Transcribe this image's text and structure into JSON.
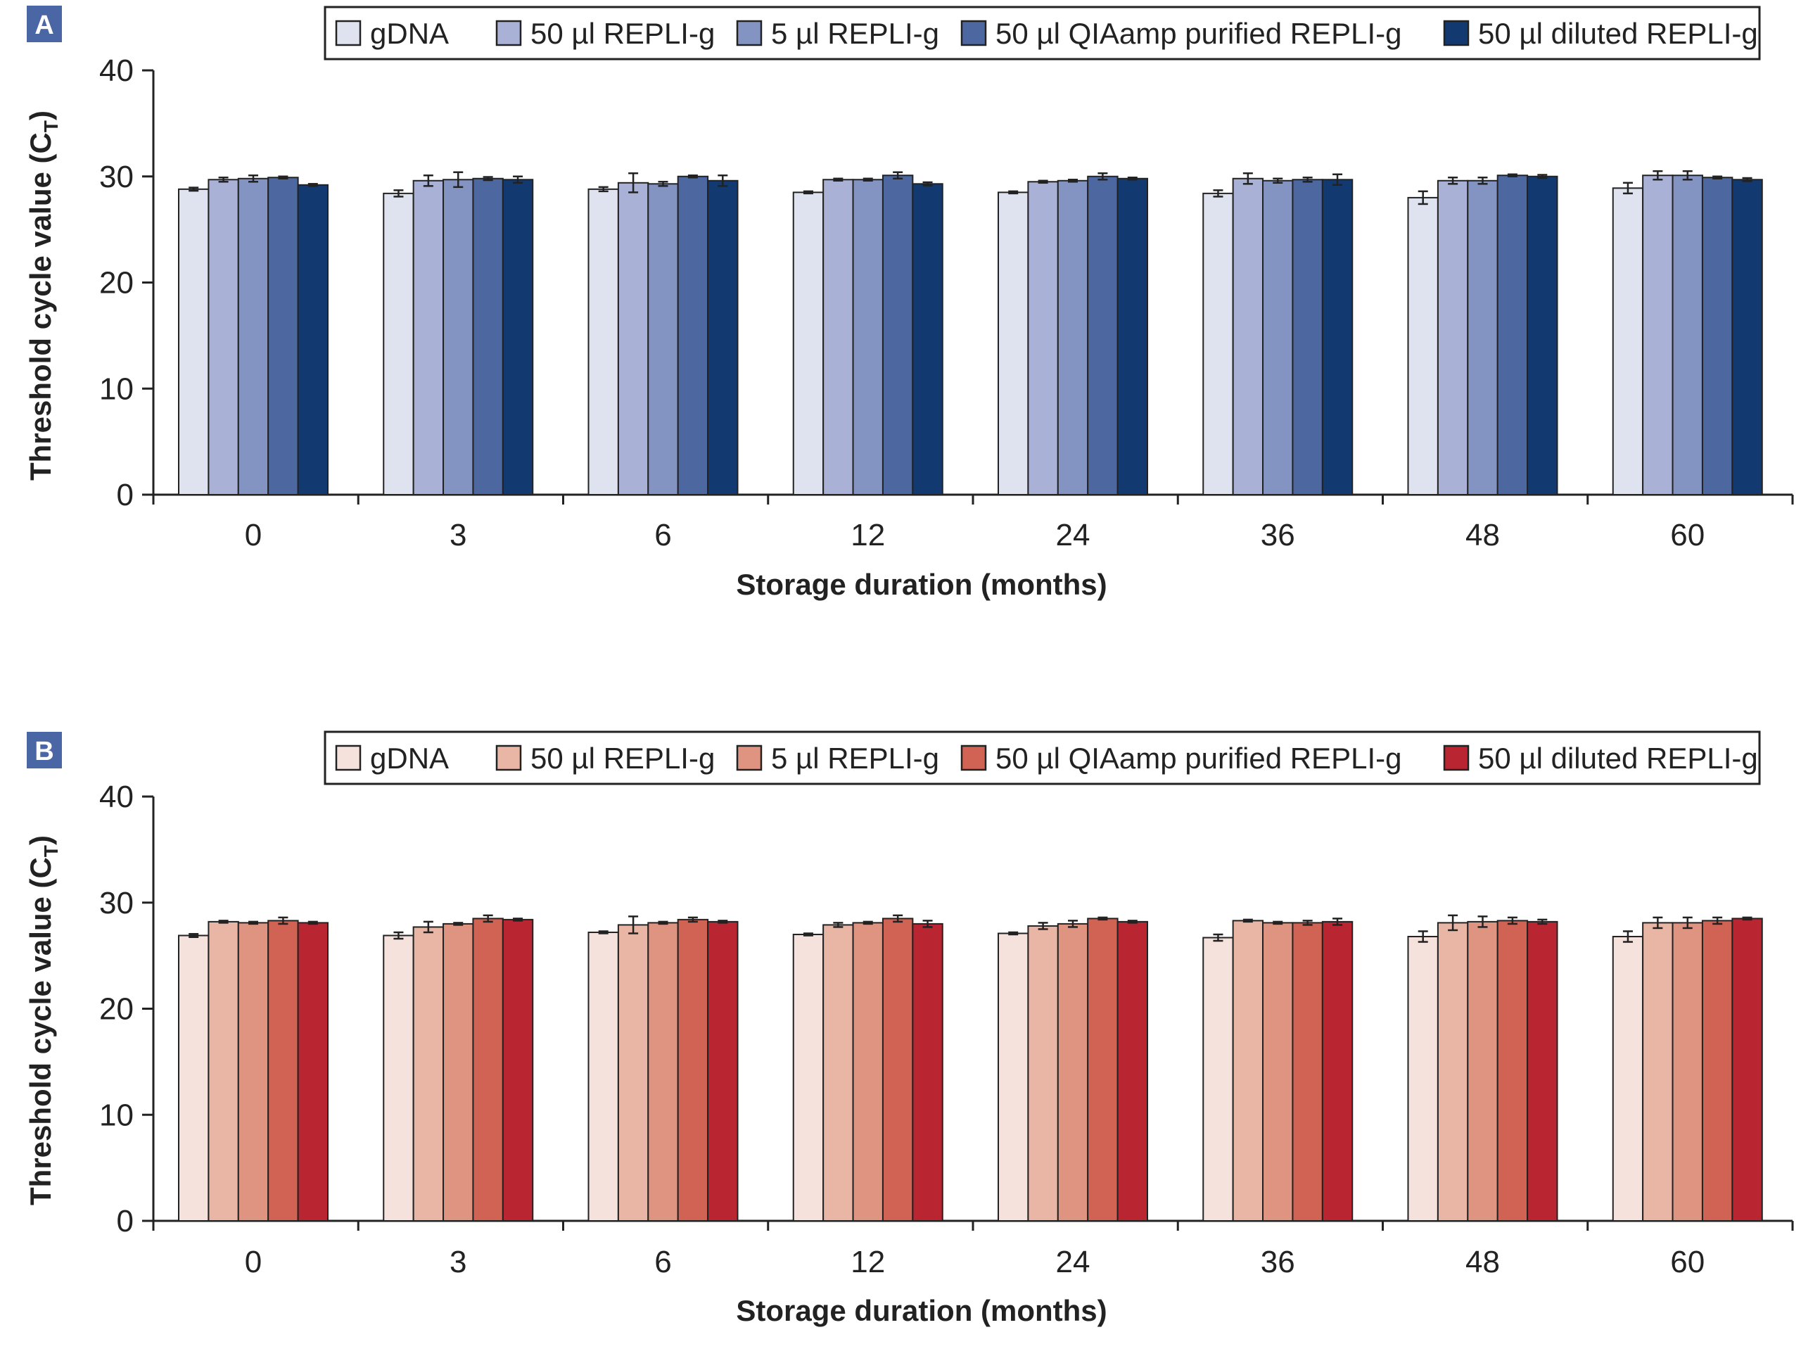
{
  "chart_data": [
    {
      "type": "bar",
      "panel_label": "A",
      "title": "",
      "xlabel": "Storage duration (months)",
      "ylabel": "Threshold cycle value (C",
      "ylabel_subscript": "T",
      "ylabel_close": ")",
      "ylim": [
        0,
        40
      ],
      "yticks": [
        "0",
        "10",
        "20",
        "30",
        "40"
      ],
      "categories": [
        "0",
        "3",
        "6",
        "12",
        "24",
        "36",
        "48",
        "60"
      ],
      "legend_position": "top-right",
      "colors": [
        "#dfe2ef",
        "#a9b2d6",
        "#8494c2",
        "#4d68a0",
        "#123a71"
      ],
      "series": [
        {
          "name": "gDNA",
          "values": [
            28.8,
            28.4,
            28.8,
            28.5,
            28.5,
            28.4,
            28.0,
            28.9
          ],
          "errors": [
            0.15,
            0.3,
            0.2,
            0.1,
            0.1,
            0.3,
            0.6,
            0.5
          ]
        },
        {
          "name": "50 µl REPLI-g",
          "values": [
            29.7,
            29.6,
            29.4,
            29.7,
            29.5,
            29.8,
            29.6,
            30.1
          ],
          "errors": [
            0.2,
            0.5,
            0.9,
            0.1,
            0.1,
            0.5,
            0.3,
            0.4
          ]
        },
        {
          "name": "5 µl REPLI-g",
          "values": [
            29.8,
            29.7,
            29.3,
            29.7,
            29.6,
            29.6,
            29.6,
            30.1
          ],
          "errors": [
            0.3,
            0.7,
            0.2,
            0.1,
            0.1,
            0.2,
            0.3,
            0.4
          ]
        },
        {
          "name": "50 µl QIAamp purified REPLI-g",
          "values": [
            29.9,
            29.8,
            30.0,
            30.1,
            30.0,
            29.7,
            30.1,
            29.9
          ],
          "errors": [
            0.1,
            0.15,
            0.1,
            0.3,
            0.3,
            0.2,
            0.1,
            0.1
          ]
        },
        {
          "name": "50 µl diluted REPLI-g",
          "values": [
            29.2,
            29.7,
            29.6,
            29.3,
            29.8,
            29.7,
            30.0,
            29.7
          ],
          "errors": [
            0.1,
            0.3,
            0.5,
            0.15,
            0.1,
            0.5,
            0.15,
            0.15
          ]
        }
      ]
    },
    {
      "type": "bar",
      "panel_label": "B",
      "title": "",
      "xlabel": "Storage duration (months)",
      "ylabel": "Threshold cycle value (C",
      "ylabel_subscript": "T",
      "ylabel_close": ")",
      "ylim": [
        0,
        40
      ],
      "yticks": [
        "0",
        "10",
        "20",
        "30",
        "40"
      ],
      "categories": [
        "0",
        "3",
        "6",
        "12",
        "24",
        "36",
        "48",
        "60"
      ],
      "legend_position": "top-right",
      "colors": [
        "#f6e2dc",
        "#e9b6a5",
        "#de9481",
        "#d06353",
        "#b92530"
      ],
      "series": [
        {
          "name": "gDNA",
          "values": [
            26.9,
            26.9,
            27.2,
            27.0,
            27.1,
            26.7,
            26.8,
            26.8
          ],
          "errors": [
            0.15,
            0.3,
            0.1,
            0.1,
            0.1,
            0.3,
            0.5,
            0.5
          ]
        },
        {
          "name": "50 µl REPLI-g",
          "values": [
            28.2,
            27.7,
            27.9,
            27.9,
            27.8,
            28.3,
            28.1,
            28.1
          ],
          "errors": [
            0.1,
            0.5,
            0.8,
            0.2,
            0.3,
            0.1,
            0.7,
            0.5
          ]
        },
        {
          "name": "5 µl REPLI-g",
          "values": [
            28.1,
            28.0,
            28.1,
            28.1,
            28.0,
            28.1,
            28.2,
            28.1
          ],
          "errors": [
            0.1,
            0.1,
            0.1,
            0.1,
            0.3,
            0.1,
            0.5,
            0.5
          ]
        },
        {
          "name": "50 µl QIAamp purified REPLI-g",
          "values": [
            28.3,
            28.5,
            28.4,
            28.5,
            28.5,
            28.1,
            28.3,
            28.3
          ],
          "errors": [
            0.3,
            0.3,
            0.2,
            0.3,
            0.1,
            0.2,
            0.3,
            0.3
          ]
        },
        {
          "name": "50 µl diluted REPLI-g",
          "values": [
            28.1,
            28.4,
            28.2,
            28.0,
            28.2,
            28.2,
            28.2,
            28.5
          ],
          "errors": [
            0.1,
            0.1,
            0.1,
            0.3,
            0.1,
            0.3,
            0.2,
            0.1
          ]
        }
      ]
    }
  ]
}
